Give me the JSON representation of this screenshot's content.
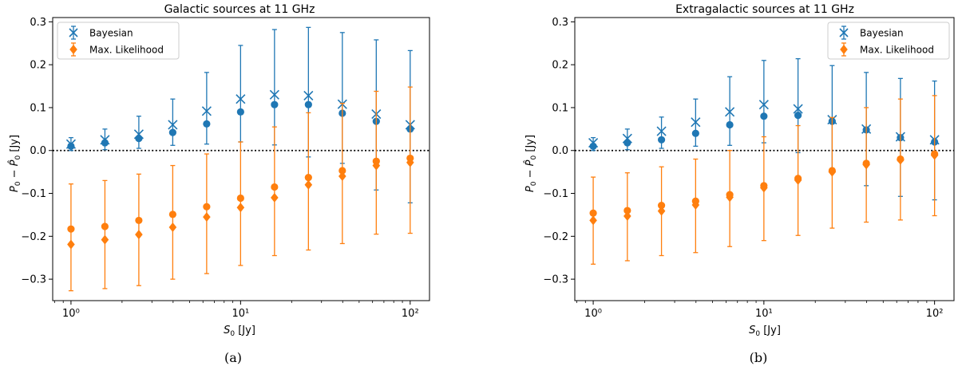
{
  "colors": {
    "bayesian": "#1f77b4",
    "ml": "#ff7f0e"
  },
  "chart_data": [
    {
      "type": "scatter",
      "panel_label": "(a)",
      "title": "Galactic sources at 11 GHz",
      "xlabel": "S_0 [Jy]",
      "ylabel": "P_0 − P̂_0 [Jy]",
      "xscale": "log",
      "xlim": [
        0.78,
        130
      ],
      "ylim": [
        -0.35,
        0.31
      ],
      "yticks": [
        -0.3,
        -0.2,
        -0.1,
        0.0,
        0.1,
        0.2,
        0.3
      ],
      "ytick_labels": [
        "−0.3",
        "−0.2",
        "−0.1",
        "0.0",
        "0.1",
        "0.2",
        "0.3"
      ],
      "xticks": [
        1,
        10,
        100
      ],
      "xtick_labels": [
        "10⁰",
        "10¹",
        "10²"
      ],
      "legend": {
        "placement": "top-left",
        "entries": [
          "Bayesian",
          "Max. Likelihood"
        ]
      },
      "zero_line": true,
      "series": [
        {
          "name": "Bayesian",
          "x": [
            1.0,
            1.585,
            2.512,
            3.981,
            6.31,
            10.0,
            15.85,
            25.12,
            39.81,
            63.1,
            100.0
          ],
          "cross": [
            0.015,
            0.025,
            0.038,
            0.06,
            0.092,
            0.12,
            0.13,
            0.128,
            0.108,
            0.085,
            0.06
          ],
          "dot": [
            0.01,
            0.018,
            0.028,
            0.042,
            0.062,
            0.09,
            0.107,
            0.107,
            0.087,
            0.068,
            0.05
          ],
          "err_low": [
            0.0,
            0.002,
            0.005,
            0.012,
            0.015,
            0.02,
            0.013,
            -0.015,
            -0.03,
            -0.092,
            -0.122
          ],
          "err_high": [
            0.03,
            0.05,
            0.08,
            0.12,
            0.182,
            0.245,
            0.282,
            0.287,
            0.275,
            0.258,
            0.233
          ]
        },
        {
          "name": "Max. Likelihood",
          "x": [
            1.0,
            1.585,
            2.512,
            3.981,
            6.31,
            10.0,
            15.85,
            25.12,
            39.81,
            63.1,
            100.0
          ],
          "dot": [
            -0.183,
            -0.177,
            -0.163,
            -0.149,
            -0.131,
            -0.111,
            -0.085,
            -0.063,
            -0.047,
            -0.025,
            -0.018
          ],
          "diamond": [
            -0.219,
            -0.208,
            -0.196,
            -0.179,
            -0.155,
            -0.133,
            -0.11,
            -0.08,
            -0.06,
            -0.035,
            -0.028
          ],
          "err_low": [
            -0.327,
            -0.322,
            -0.315,
            -0.3,
            -0.287,
            -0.268,
            -0.245,
            -0.232,
            -0.217,
            -0.195,
            -0.193
          ],
          "err_high": [
            -0.078,
            -0.07,
            -0.055,
            -0.035,
            -0.008,
            0.02,
            0.055,
            0.088,
            0.11,
            0.138,
            0.148
          ]
        }
      ]
    },
    {
      "type": "scatter",
      "panel_label": "(b)",
      "title": "Extragalactic sources at 11 GHz",
      "xlabel": "S_0 [Jy]",
      "ylabel": "P_0 − P̂_0 [Jy]",
      "xscale": "log",
      "xlim": [
        0.78,
        130
      ],
      "ylim": [
        -0.35,
        0.31
      ],
      "yticks": [
        -0.3,
        -0.2,
        -0.1,
        0.0,
        0.1,
        0.2,
        0.3
      ],
      "ytick_labels": [
        "−0.3",
        "−0.2",
        "−0.1",
        "0.0",
        "0.1",
        "0.2",
        "0.3"
      ],
      "xticks": [
        1,
        10,
        100
      ],
      "xtick_labels": [
        "10⁰",
        "10¹",
        "10²"
      ],
      "legend": {
        "placement": "top-right",
        "entries": [
          "Bayesian",
          "Max. Likelihood"
        ]
      },
      "zero_line": true,
      "series": [
        {
          "name": "Bayesian",
          "x": [
            1.0,
            1.585,
            2.512,
            3.981,
            6.31,
            10.0,
            15.85,
            25.12,
            39.81,
            63.1,
            100.0
          ],
          "cross": [
            0.018,
            0.028,
            0.045,
            0.066,
            0.09,
            0.107,
            0.097,
            0.072,
            0.05,
            0.032,
            0.025
          ],
          "dot": [
            0.01,
            0.018,
            0.025,
            0.04,
            0.06,
            0.08,
            0.082,
            0.068,
            0.048,
            0.03,
            0.02
          ],
          "err_low": [
            0.0,
            0.002,
            0.005,
            0.01,
            0.012,
            0.018,
            -0.005,
            -0.05,
            -0.082,
            -0.107,
            -0.115
          ],
          "err_high": [
            0.03,
            0.05,
            0.078,
            0.12,
            0.172,
            0.21,
            0.214,
            0.198,
            0.182,
            0.168,
            0.162
          ]
        },
        {
          "name": "Max. Likelihood",
          "x": [
            1.0,
            1.585,
            2.512,
            3.981,
            6.31,
            10.0,
            15.85,
            25.12,
            39.81,
            63.1,
            100.0
          ],
          "dot": [
            -0.146,
            -0.14,
            -0.128,
            -0.118,
            -0.103,
            -0.082,
            -0.065,
            -0.047,
            -0.03,
            -0.02,
            -0.008
          ],
          "diamond": [
            -0.163,
            -0.153,
            -0.141,
            -0.127,
            -0.109,
            -0.087,
            -0.069,
            -0.05,
            -0.033,
            -0.022,
            -0.011
          ],
          "err_low": [
            -0.265,
            -0.257,
            -0.245,
            -0.238,
            -0.224,
            -0.21,
            -0.198,
            -0.181,
            -0.167,
            -0.162,
            -0.152
          ],
          "err_high": [
            -0.062,
            -0.052,
            -0.038,
            -0.02,
            0.0,
            0.032,
            0.058,
            0.077,
            0.1,
            0.12,
            0.128
          ]
        }
      ]
    }
  ]
}
